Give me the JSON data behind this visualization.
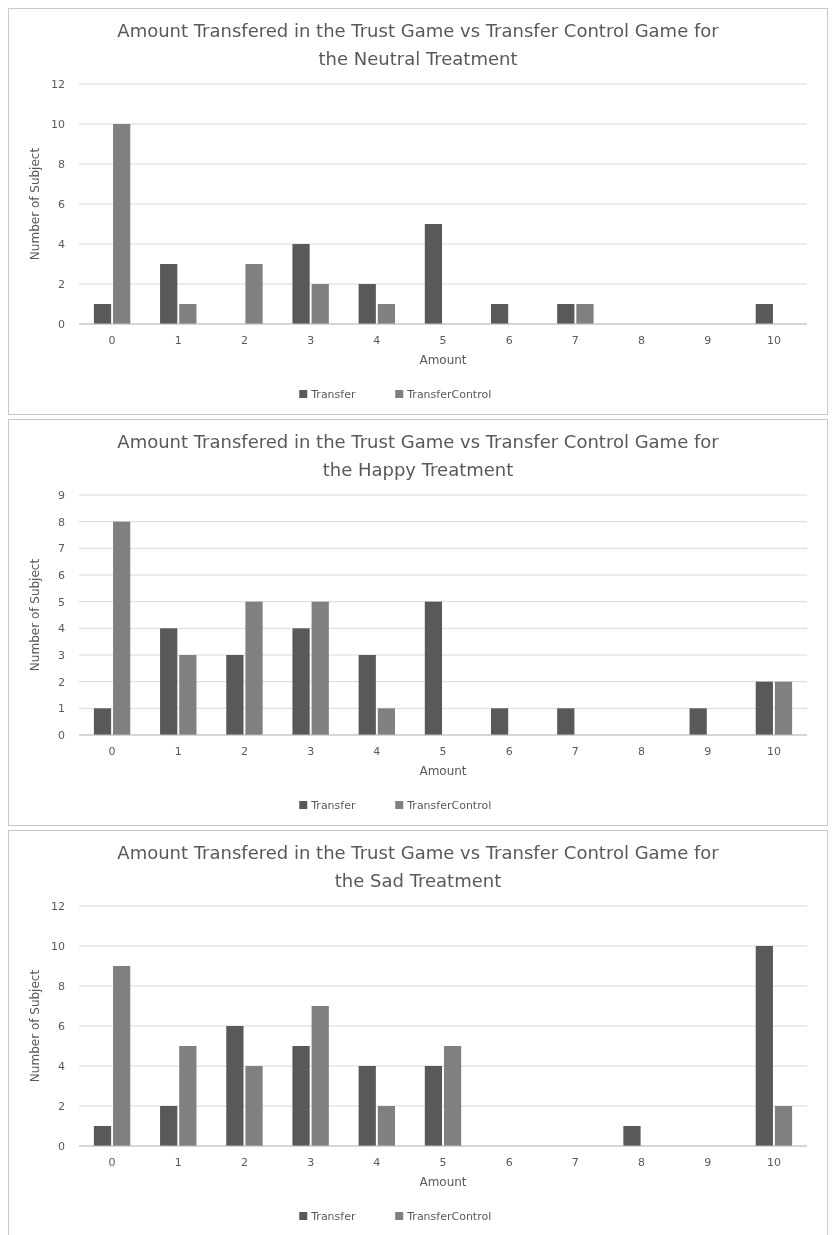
{
  "chart_data": [
    {
      "type": "bar",
      "title": "Amount Transfered  in the Trust Game vs Transfer Control Game for the Neutral Treatment",
      "xlabel": "Amount",
      "ylabel": "Number of Subject",
      "categories": [
        "0",
        "1",
        "2",
        "3",
        "4",
        "5",
        "6",
        "7",
        "8",
        "9",
        "10"
      ],
      "series": [
        {
          "name": "Transfer",
          "color": "#595959",
          "values": [
            1,
            3,
            0,
            4,
            2,
            5,
            1,
            1,
            0,
            0,
            1
          ]
        },
        {
          "name": "TransferControl",
          "color": "#808080",
          "values": [
            10,
            1,
            3,
            2,
            1,
            0,
            0,
            1,
            0,
            0,
            0
          ]
        }
      ],
      "ylim": [
        0,
        12
      ],
      "yticks": [
        0,
        2,
        4,
        6,
        8,
        10,
        12
      ],
      "grid": "y",
      "legend": "bottom"
    },
    {
      "type": "bar",
      "title": "Amount Transfered  in the Trust Game vs Transfer Control Game for the Happy Treatment",
      "xlabel": "Amount",
      "ylabel": "Number of Subject",
      "categories": [
        "0",
        "1",
        "2",
        "3",
        "4",
        "5",
        "6",
        "7",
        "8",
        "9",
        "10"
      ],
      "series": [
        {
          "name": "Transfer",
          "color": "#595959",
          "values": [
            1,
            4,
            3,
            4,
            3,
            5,
            1,
            1,
            0,
            1,
            2
          ]
        },
        {
          "name": "TransferControl",
          "color": "#808080",
          "values": [
            8,
            3,
            5,
            5,
            1,
            0,
            0,
            0,
            0,
            0,
            2
          ]
        }
      ],
      "ylim": [
        0,
        9
      ],
      "yticks": [
        0,
        1,
        2,
        3,
        4,
        5,
        6,
        7,
        8,
        9
      ],
      "grid": "y",
      "legend": "bottom"
    },
    {
      "type": "bar",
      "title": "Amount Transfered  in the Trust Game vs Transfer Control Game for the Sad Treatment",
      "xlabel": "Amount",
      "ylabel": "Number of Subject",
      "categories": [
        "0",
        "1",
        "2",
        "3",
        "4",
        "5",
        "6",
        "7",
        "8",
        "9",
        "10"
      ],
      "series": [
        {
          "name": "Transfer",
          "color": "#595959",
          "values": [
            1,
            2,
            6,
            5,
            4,
            4,
            0,
            0,
            1,
            0,
            10
          ]
        },
        {
          "name": "TransferControl",
          "color": "#808080",
          "values": [
            9,
            5,
            4,
            7,
            2,
            5,
            0,
            0,
            0,
            0,
            2
          ]
        }
      ],
      "ylim": [
        0,
        12
      ],
      "yticks": [
        0,
        2,
        4,
        6,
        8,
        10,
        12
      ],
      "grid": "y",
      "legend": "bottom"
    }
  ]
}
